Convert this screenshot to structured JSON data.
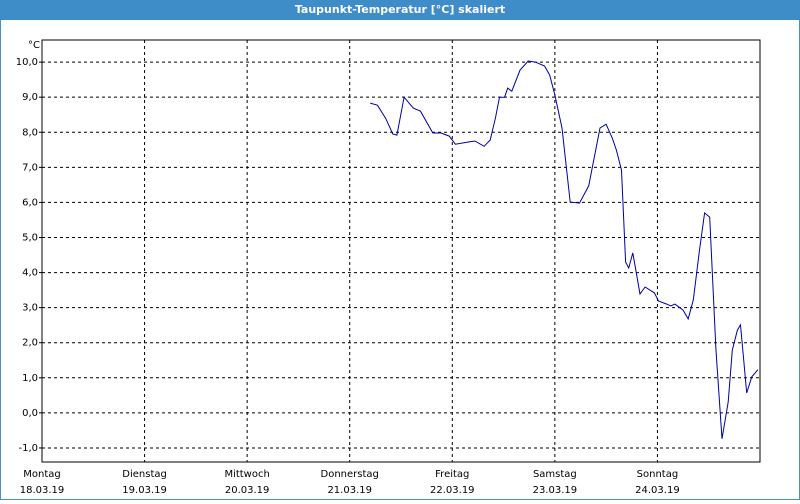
{
  "chart_data": {
    "type": "line",
    "title": "Taupunkt-Temperatur [°C] skaliert",
    "y_label": "°C",
    "xlim": [
      0,
      7
    ],
    "ylim": [
      -1.4,
      10.63
    ],
    "xticks": [
      {
        "value": 0,
        "label": "Montag"
      },
      {
        "value": 1,
        "label": "Dienstag"
      },
      {
        "value": 2,
        "label": "Mittwoch"
      },
      {
        "value": 3,
        "label": "Donnerstag"
      },
      {
        "value": 4,
        "label": "Freitag"
      },
      {
        "value": 5,
        "label": "Samstag"
      },
      {
        "value": 6,
        "label": "Sonntag"
      }
    ],
    "xtick_dates": [
      "18.03.19",
      "19.03.19",
      "20.03.19",
      "21.03.19",
      "22.03.19",
      "23.03.19",
      "24.03.19"
    ],
    "yticks": [
      {
        "value": -1,
        "label": "-1,0"
      },
      {
        "value": 0,
        "label": "0,0"
      },
      {
        "value": 1,
        "label": "1,0"
      },
      {
        "value": 2,
        "label": "2,0"
      },
      {
        "value": 3,
        "label": "3,0"
      },
      {
        "value": 4,
        "label": "4,0"
      },
      {
        "value": 5,
        "label": "5,0"
      },
      {
        "value": 6,
        "label": "6,0"
      },
      {
        "value": 7,
        "label": "7,0"
      },
      {
        "value": 8,
        "label": "8,0"
      },
      {
        "value": 9,
        "label": "9,0"
      },
      {
        "value": 10,
        "label": "10,0"
      }
    ],
    "grid": true,
    "series": [
      {
        "color": "#0000a0",
        "x": [
          3.2,
          3.27,
          3.35,
          3.42,
          3.46,
          3.53,
          3.62,
          3.69,
          3.81,
          3.89,
          3.97,
          4.03,
          4.15,
          4.22,
          4.31,
          4.37,
          4.42,
          4.46,
          4.51,
          4.54,
          4.58,
          4.66,
          4.74,
          4.81,
          4.9,
          4.95,
          5.0,
          5.07,
          5.15,
          5.24,
          5.33,
          5.44,
          5.5,
          5.56,
          5.6,
          5.65,
          5.69,
          5.72,
          5.76,
          5.83,
          5.88,
          5.97,
          6.01,
          6.09,
          6.13,
          6.17,
          6.25,
          6.3,
          6.35,
          6.41,
          6.46,
          6.51,
          6.57,
          6.63,
          6.69,
          6.73,
          6.78,
          6.81,
          6.87,
          6.92,
          6.98
        ],
        "values": [
          8.83,
          8.77,
          8.4,
          7.95,
          7.92,
          9.0,
          8.69,
          8.6,
          7.98,
          7.98,
          7.89,
          7.66,
          7.72,
          7.75,
          7.6,
          7.78,
          8.4,
          9.0,
          9.0,
          9.26,
          9.17,
          9.77,
          10.03,
          10.0,
          9.89,
          9.63,
          9.06,
          8.12,
          6.01,
          5.98,
          6.47,
          8.12,
          8.23,
          7.83,
          7.49,
          6.92,
          4.3,
          4.13,
          4.56,
          3.39,
          3.59,
          3.42,
          3.19,
          3.1,
          3.05,
          3.1,
          2.93,
          2.68,
          3.22,
          4.64,
          5.7,
          5.58,
          1.82,
          -0.74,
          0.31,
          1.79,
          2.36,
          2.51,
          0.57,
          1.03,
          1.23
        ]
      }
    ]
  }
}
